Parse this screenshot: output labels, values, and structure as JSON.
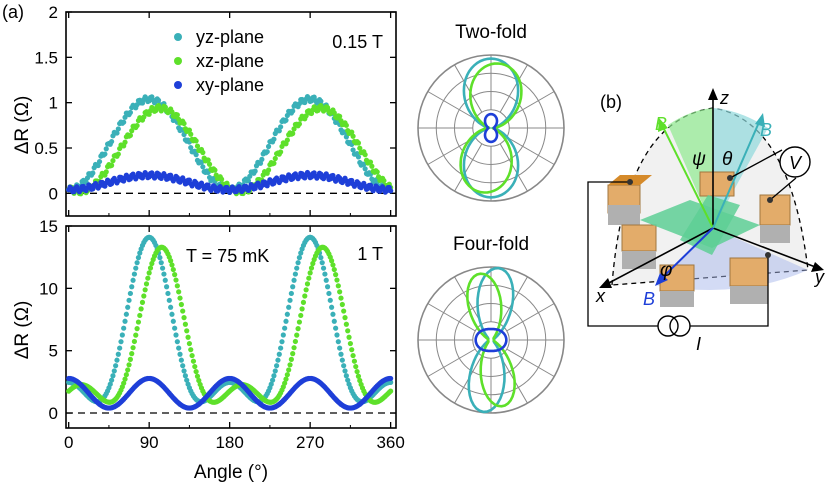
{
  "panel_a_label": "(a)",
  "panel_b_label": "(b)",
  "colors": {
    "yz": "#3ab0b8",
    "xz": "#5ee02a",
    "xy": "#1e3fd8",
    "frame": "#000000",
    "polar_grid": "#888888"
  },
  "chart_data": [
    {
      "type": "scatter",
      "id": "top",
      "ylabel": "ΔR (Ω)",
      "field_label": "0.15 T",
      "xlim": [
        -3,
        366
      ],
      "ylim": [
        -0.25,
        2.0
      ],
      "xticks": [
        0,
        90,
        180,
        270,
        360
      ],
      "yticks": [
        0,
        0.5,
        1,
        1.5,
        2
      ],
      "ytick_labels": [
        "0",
        "0.5",
        "1",
        "1.5",
        "2"
      ],
      "zero_line": "dashed",
      "legend": {
        "position": "top-left",
        "entries": [
          "yz-plane",
          "xz-plane",
          "xy-plane"
        ]
      },
      "series": [
        {
          "name": "yz-plane",
          "color": "#3ab0b8",
          "model": {
            "kind": "sin2",
            "amp": 1.0,
            "phase": 0,
            "offset": 0.04
          }
        },
        {
          "name": "xz-plane",
          "color": "#5ee02a",
          "model": {
            "kind": "sin2",
            "amp": 0.92,
            "phase": 12,
            "offset": 0.02
          }
        },
        {
          "name": "xy-plane",
          "color": "#1e3fd8",
          "model": {
            "kind": "sin2",
            "amp": 0.16,
            "phase": 0,
            "offset": 0.04
          }
        }
      ]
    },
    {
      "type": "scatter",
      "id": "bottom",
      "ylabel": "ΔR (Ω)",
      "xlabel": "Angle (°)",
      "field_label": "1 T",
      "temperature_label": "T = 75 mK",
      "xlim": [
        -3,
        366
      ],
      "ylim": [
        -1.2,
        15.0
      ],
      "xticks": [
        0,
        90,
        180,
        270,
        360
      ],
      "xtick_labels": [
        "0",
        "90",
        "180",
        "270",
        "360"
      ],
      "yticks": [
        0,
        5,
        10,
        15
      ],
      "ytick_labels": [
        "0",
        "5",
        "10",
        "15"
      ],
      "zero_line": "dashed",
      "series": [
        {
          "name": "yz-plane",
          "color": "#3ab0b8",
          "model": {
            "kind": "cos4",
            "amp": 13.8,
            "phase": 0,
            "offset": 0.3,
            "base": 2.4
          }
        },
        {
          "name": "xz-plane",
          "color": "#5ee02a",
          "model": {
            "kind": "cos4",
            "amp": 13.0,
            "phase": 14,
            "offset": 0.3,
            "base": 2.2
          }
        },
        {
          "name": "xy-plane",
          "color": "#1e3fd8",
          "model": {
            "kind": "cos4",
            "amp": 2.5,
            "phase": 0,
            "offset": 0.3,
            "base": 0.0
          }
        }
      ]
    },
    {
      "type": "polar",
      "id": "two_fold",
      "title": "Two-fold"
    },
    {
      "type": "polar",
      "id": "four_fold",
      "title": "Four-fold"
    }
  ],
  "schematic": {
    "labels": {
      "B": "B",
      "z": "z",
      "x": "x",
      "y": "y",
      "psi": "ψ",
      "theta": "θ",
      "phi": "φ",
      "V": "V",
      "I": "I"
    }
  }
}
